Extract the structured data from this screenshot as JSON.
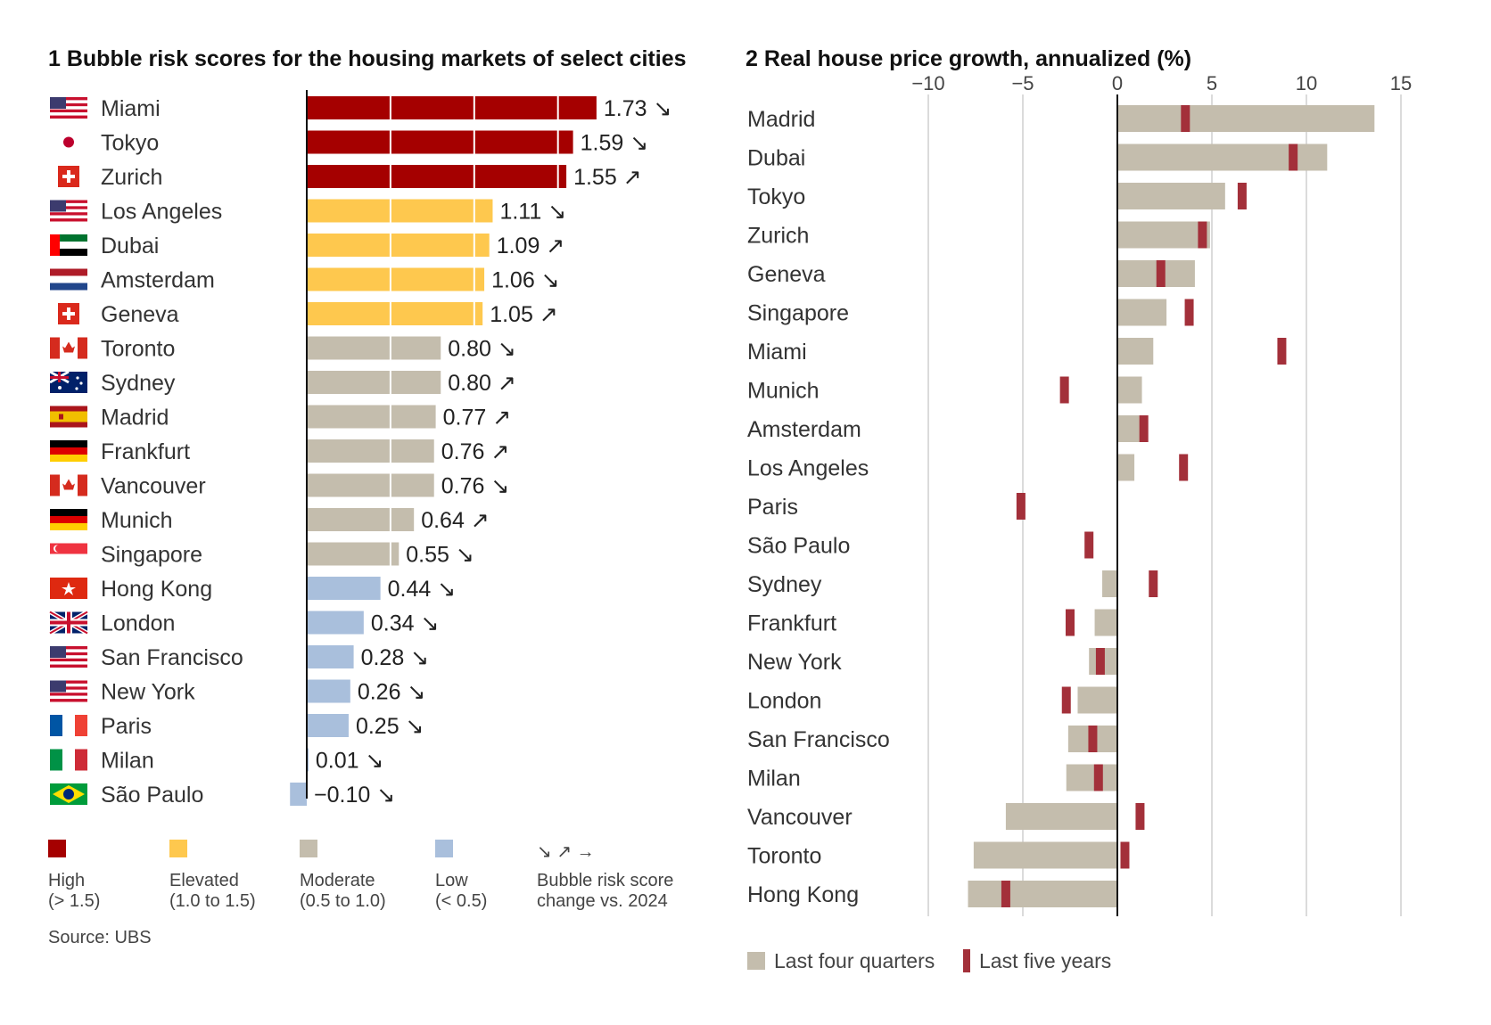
{
  "chart_data": [
    {
      "type": "bar",
      "orientation": "horizontal",
      "title": "1 Bubble risk scores for the housing markets of select cities",
      "categories": [
        "Miami",
        "Tokyo",
        "Zurich",
        "Los Angeles",
        "Dubai",
        "Amsterdam",
        "Geneva",
        "Toronto",
        "Sydney",
        "Madrid",
        "Frankfurt",
        "Vancouver",
        "Munich",
        "Singapore",
        "Hong Kong",
        "London",
        "San Francisco",
        "New York",
        "Paris",
        "Milan",
        "São Paulo"
      ],
      "values": [
        1.73,
        1.59,
        1.55,
        1.11,
        1.09,
        1.06,
        1.05,
        0.8,
        0.8,
        0.77,
        0.76,
        0.76,
        0.64,
        0.55,
        0.44,
        0.34,
        0.28,
        0.26,
        0.25,
        0.01,
        -0.1
      ],
      "value_labels": [
        "1.73",
        "1.59",
        "1.55",
        "1.11",
        "1.09",
        "1.06",
        "1.05",
        "0.80",
        "0.80",
        "0.77",
        "0.76",
        "0.76",
        "0.64",
        "0.55",
        "0.44",
        "0.34",
        "0.28",
        "0.26",
        "0.25",
        "0.01",
        "−0.10"
      ],
      "change_arrows": [
        "↘",
        "↘",
        "↗",
        "↘",
        "↗",
        "↘",
        "↗",
        "↘",
        "↗",
        "↗",
        "↗",
        "↘",
        "↗",
        "↘",
        "↘",
        "↘",
        "↘",
        "↘",
        "↘",
        "↘",
        "↘"
      ],
      "flags": [
        "us",
        "jp",
        "ch",
        "us",
        "ae",
        "nl",
        "ch",
        "ca",
        "au",
        "es",
        "de",
        "ca",
        "de",
        "sg",
        "hk",
        "gb",
        "us",
        "us",
        "fr",
        "it",
        "br"
      ],
      "colors": {
        "high": "#a50000",
        "elevated": "#fec84e",
        "moderate": "#c4bdad",
        "low": "#a9bfdc"
      },
      "legend": [
        {
          "key": "high",
          "label": "High",
          "range": "(> 1.5)"
        },
        {
          "key": "elevated",
          "label": "Elevated",
          "range": "(1.0 to 1.5)"
        },
        {
          "key": "moderate",
          "label": "Moderate",
          "range": "(0.5 to 1.0)"
        },
        {
          "key": "low",
          "label": "Low",
          "range": "(< 0.5)"
        }
      ],
      "change_legend": {
        "symbols": "↘ ↗ →",
        "line1": "Bubble risk score",
        "line2": "change vs. 2024"
      },
      "source": "Source: UBS",
      "xlim": [
        -0.1,
        1.73
      ],
      "grid": true
    },
    {
      "type": "bar",
      "orientation": "horizontal",
      "title": "2 Real house price growth, annualized (%)",
      "categories": [
        "Madrid",
        "Dubai",
        "Tokyo",
        "Zurich",
        "Geneva",
        "Singapore",
        "Miami",
        "Munich",
        "Amsterdam",
        "Los Angeles",
        "Paris",
        "São Paulo",
        "Sydney",
        "Frankfurt",
        "New York",
        "London",
        "San Francisco",
        "Milan",
        "Vancouver",
        "Toronto",
        "Hong Kong"
      ],
      "series": [
        {
          "name": "Last four quarters",
          "type": "bar",
          "color": "#c4bdad",
          "values": [
            13.6,
            11.1,
            5.7,
            4.9,
            4.1,
            2.6,
            1.9,
            1.3,
            1.2,
            0.9,
            0.0,
            0.0,
            -0.8,
            -1.2,
            -1.5,
            -2.1,
            -2.6,
            -2.7,
            -5.9,
            -7.6,
            -7.9
          ]
        },
        {
          "name": "Last five years",
          "type": "marker",
          "color": "#a3303a",
          "values": [
            3.6,
            9.3,
            6.6,
            4.5,
            2.3,
            3.8,
            8.7,
            -2.8,
            1.4,
            3.5,
            -5.1,
            -1.5,
            1.9,
            -2.5,
            -0.9,
            -2.7,
            -1.3,
            -1.0,
            1.2,
            0.4,
            -5.9
          ]
        }
      ],
      "x_ticks": [
        "−10",
        "−5",
        "0",
        "5",
        "10",
        "15"
      ],
      "xlim": [
        -10,
        15
      ],
      "grid": true,
      "legend_position": "bottom-left"
    }
  ]
}
